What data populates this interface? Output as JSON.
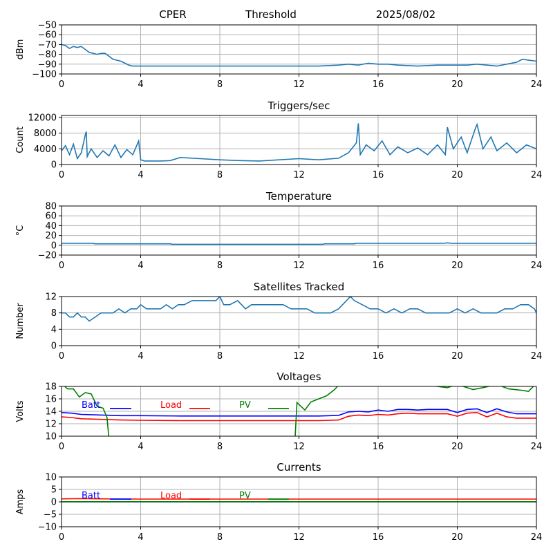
{
  "header": {
    "site": "CPER",
    "mode": "Threshold",
    "date": "2025/08/02"
  },
  "colors": {
    "series": "#1f77b4",
    "batt": "#0000ff",
    "load": "#ff0000",
    "pv": "#008000"
  },
  "chart_data": [
    {
      "type": "line",
      "title": "",
      "ylabel": "dBm",
      "xlim": [
        0,
        24
      ],
      "ylim": [
        -100,
        -50
      ],
      "xticks": [
        "0",
        "4",
        "8",
        "12",
        "16",
        "20",
        "24"
      ],
      "yticks": [
        "−50",
        "−60",
        "−70",
        "−80",
        "−90",
        "−100"
      ],
      "ytick_values": [
        -50,
        -60,
        -70,
        -80,
        -90,
        -100
      ],
      "grid": true,
      "series": [
        {
          "color": "#1f77b4",
          "x": [
            0,
            0.2,
            0.4,
            0.6,
            0.8,
            1.0,
            1.2,
            1.4,
            1.6,
            1.8,
            2.0,
            2.2,
            2.4,
            2.6,
            2.8,
            3.0,
            3.2,
            3.4,
            3.6,
            4.0,
            5,
            6,
            7,
            8,
            9,
            10,
            11,
            12,
            13,
            14,
            14.5,
            15,
            15.5,
            16,
            16.5,
            17,
            18,
            19,
            20,
            20.5,
            21,
            21.5,
            22,
            22.5,
            23,
            23.3,
            23.6,
            24
          ],
          "y": [
            -70,
            -71,
            -74,
            -72,
            -73,
            -72,
            -75,
            -78,
            -79,
            -80,
            -79,
            -79,
            -82,
            -85,
            -86,
            -87,
            -89,
            -91,
            -92,
            -92,
            -92,
            -92,
            -92,
            -92,
            -92,
            -92,
            -92,
            -92,
            -92,
            -91,
            -90,
            -91,
            -89,
            -90,
            -90,
            -91,
            -92,
            -91,
            -91,
            -91,
            -90,
            -91,
            -92,
            -90,
            -88,
            -85,
            -86,
            -87
          ]
        }
      ]
    },
    {
      "type": "line",
      "title": "Triggers/sec",
      "ylabel": "Count",
      "xlim": [
        0,
        24
      ],
      "ylim": [
        0,
        12500
      ],
      "xticks": [
        "0",
        "4",
        "8",
        "12",
        "16",
        "20",
        "24"
      ],
      "yticks": [
        "0",
        "4000",
        "8000",
        "12000"
      ],
      "ytick_values": [
        0,
        4000,
        8000,
        12000
      ],
      "grid": true,
      "series": [
        {
          "color": "#1f77b4",
          "x": [
            0,
            0.2,
            0.4,
            0.6,
            0.8,
            1.0,
            1.2,
            1.25,
            1.3,
            1.5,
            1.8,
            2.1,
            2.4,
            2.7,
            3.0,
            3.3,
            3.6,
            3.9,
            4.0,
            4.2,
            5,
            5.5,
            6,
            7,
            8,
            9,
            10,
            11,
            12,
            13,
            14,
            14.5,
            14.9,
            15.0,
            15.1,
            15.4,
            15.8,
            16.2,
            16.6,
            17,
            17.5,
            18,
            18.5,
            19,
            19.4,
            19.5,
            19.8,
            20.2,
            20.5,
            20.9,
            21.0,
            21.3,
            21.7,
            22,
            22.5,
            23,
            23.5,
            24
          ],
          "y": [
            3500,
            4800,
            2500,
            5200,
            1500,
            3000,
            7500,
            8400,
            2000,
            4000,
            1800,
            3500,
            2200,
            5000,
            1800,
            3800,
            2500,
            6000,
            1200,
            900,
            900,
            1000,
            1800,
            1500,
            1200,
            1000,
            900,
            1200,
            1500,
            1200,
            1600,
            3000,
            5500,
            10500,
            2500,
            5000,
            3500,
            6000,
            2500,
            4500,
            3000,
            4200,
            2500,
            5000,
            2500,
            9500,
            4000,
            7000,
            3000,
            9000,
            10200,
            4000,
            7000,
            3500,
            5500,
            3000,
            5000,
            4000
          ]
        }
      ]
    },
    {
      "type": "line",
      "title": "Temperature",
      "ylabel": "°C",
      "xlim": [
        0,
        24
      ],
      "ylim": [
        -20,
        80
      ],
      "xticks": [
        "0",
        "4",
        "8",
        "12",
        "16",
        "20",
        "24"
      ],
      "yticks": [
        "−20",
        "0",
        "20",
        "40",
        "60",
        "80"
      ],
      "ytick_values": [
        -20,
        0,
        20,
        40,
        60,
        80
      ],
      "grid": true,
      "series": [
        {
          "color": "#1f77b4",
          "x": [
            0,
            1.6,
            1.7,
            5.5,
            5.6,
            13.2,
            13.3,
            14.8,
            14.9,
            19.3,
            19.5,
            19.7,
            24
          ],
          "y": [
            4,
            4,
            3,
            3,
            2,
            2,
            3,
            3,
            4,
            4,
            5,
            4,
            4
          ]
        }
      ]
    },
    {
      "type": "line",
      "title": "Satellites Tracked",
      "ylabel": "Number",
      "xlim": [
        0,
        24
      ],
      "ylim": [
        0,
        12
      ],
      "xticks": [
        "0",
        "4",
        "8",
        "12",
        "16",
        "20",
        "24"
      ],
      "yticks": [
        "0",
        "4",
        "8",
        "12"
      ],
      "ytick_values": [
        0,
        4,
        8,
        12
      ],
      "grid": true,
      "series": [
        {
          "color": "#1f77b4",
          "x": [
            0,
            0.2,
            0.4,
            0.6,
            0.8,
            1.0,
            1.2,
            1.4,
            1.7,
            2.0,
            2.3,
            2.6,
            2.9,
            3.2,
            3.5,
            3.8,
            4.0,
            4.3,
            4.6,
            5.0,
            5.3,
            5.6,
            5.9,
            6.2,
            6.6,
            7.0,
            7.4,
            7.8,
            8.0,
            8.2,
            8.5,
            8.9,
            9.3,
            9.6,
            10.0,
            10.4,
            10.8,
            11.2,
            11.6,
            12.0,
            12.4,
            12.8,
            13.2,
            13.6,
            14.0,
            14.4,
            14.6,
            14.8,
            15.2,
            15.6,
            16.0,
            16.4,
            16.8,
            17.2,
            17.6,
            18.0,
            18.4,
            18.8,
            19.2,
            19.6,
            20.0,
            20.4,
            20.8,
            21.2,
            21.6,
            22.0,
            22.4,
            22.8,
            23.2,
            23.6,
            23.9,
            24
          ],
          "y": [
            8,
            8,
            7,
            7,
            8,
            7,
            7,
            6,
            7,
            8,
            8,
            8,
            9,
            8,
            9,
            9,
            10,
            9,
            9,
            9,
            10,
            9,
            10,
            10,
            11,
            11,
            11,
            11,
            12,
            10,
            10,
            11,
            9,
            10,
            10,
            10,
            10,
            10,
            9,
            9,
            9,
            8,
            8,
            8,
            9,
            11,
            12,
            11,
            10,
            9,
            9,
            8,
            9,
            8,
            9,
            9,
            8,
            8,
            8,
            8,
            9,
            8,
            9,
            8,
            8,
            8,
            9,
            9,
            10,
            10,
            9,
            8
          ]
        }
      ]
    },
    {
      "type": "line",
      "title": "Voltages",
      "ylabel": "Volts",
      "xlim": [
        0,
        24
      ],
      "ylim": [
        10,
        18
      ],
      "xticks": [
        "0",
        "4",
        "8",
        "12",
        "16",
        "20",
        "24"
      ],
      "yticks": [
        "10",
        "12",
        "14",
        "16",
        "18"
      ],
      "ytick_values": [
        10,
        12,
        14,
        16,
        18
      ],
      "grid": true,
      "legend": {
        "placement": "top-left",
        "entries": [
          "Batt",
          "Load",
          "PV"
        ]
      },
      "series": [
        {
          "name": "Batt",
          "color": "#0000ff",
          "x": [
            0,
            0.5,
            1,
            2,
            3,
            4,
            6,
            8,
            10,
            12,
            13,
            14,
            14.5,
            15,
            15.5,
            16,
            16.5,
            17,
            17.5,
            18,
            18.5,
            19,
            19.5,
            20,
            20.5,
            21,
            21.5,
            22,
            22.5,
            23,
            23.5,
            24
          ],
          "y": [
            13.8,
            13.7,
            13.5,
            13.4,
            13.3,
            13.3,
            13.25,
            13.25,
            13.25,
            13.25,
            13.25,
            13.35,
            13.9,
            14.0,
            13.9,
            14.2,
            14.0,
            14.3,
            14.3,
            14.2,
            14.3,
            14.3,
            14.3,
            13.8,
            14.3,
            14.4,
            13.8,
            14.4,
            13.9,
            13.6,
            13.6,
            13.6
          ]
        },
        {
          "name": "Load",
          "color": "#ff0000",
          "x": [
            0,
            0.5,
            1,
            2,
            3,
            4,
            6,
            8,
            10,
            12,
            13,
            14,
            14.5,
            15,
            15.5,
            16,
            16.5,
            17,
            17.5,
            18,
            18.5,
            19,
            19.5,
            20,
            20.5,
            21,
            21.5,
            22,
            22.5,
            23,
            23.5,
            24
          ],
          "y": [
            13.1,
            13.0,
            12.8,
            12.7,
            12.6,
            12.55,
            12.5,
            12.5,
            12.5,
            12.5,
            12.5,
            12.6,
            13.2,
            13.4,
            13.3,
            13.5,
            13.4,
            13.6,
            13.7,
            13.6,
            13.6,
            13.6,
            13.6,
            13.2,
            13.7,
            13.8,
            13.1,
            13.7,
            13.1,
            12.9,
            12.9,
            12.9
          ]
        },
        {
          "name": "PV",
          "color": "#008000",
          "x": [
            0,
            0.3,
            0.6,
            0.9,
            1.2,
            1.5,
            1.8,
            2.1,
            2.3,
            2.4,
            11.8,
            11.9,
            12.3,
            12.6,
            13.0,
            13.4,
            13.8,
            14.0,
            18.0,
            19.5,
            20.0,
            20.8,
            21.3,
            22.0,
            22.6,
            23.2,
            23.6,
            24
          ],
          "y": [
            18.5,
            17.6,
            17.6,
            16.3,
            17.0,
            16.8,
            14.8,
            14.5,
            13.0,
            9.5,
            9.5,
            15.4,
            14.2,
            15.5,
            16.0,
            16.5,
            17.5,
            18.2,
            18.4,
            17.8,
            18.3,
            17.5,
            17.8,
            18.3,
            17.6,
            17.4,
            17.2,
            18.5
          ]
        }
      ]
    },
    {
      "type": "line",
      "title": "Currents",
      "ylabel": "Amps",
      "xlim": [
        0,
        24
      ],
      "ylim": [
        -10,
        10
      ],
      "xticks": [
        "0",
        "4",
        "8",
        "12",
        "16",
        "20",
        "24"
      ],
      "yticks": [
        "−10",
        "−5",
        "0",
        "5",
        "10"
      ],
      "ytick_values": [
        -10,
        -5,
        0,
        5,
        10
      ],
      "grid": true,
      "legend": {
        "placement": "top-left",
        "entries": [
          "Batt",
          "Load",
          "PV"
        ]
      },
      "series": [
        {
          "name": "Batt",
          "color": "#0000ff",
          "x": [
            0,
            24
          ],
          "y": [
            0,
            0
          ]
        },
        {
          "name": "Load",
          "color": "#ff0000",
          "x": [
            0,
            1,
            2,
            4,
            8,
            12,
            16,
            20,
            24
          ],
          "y": [
            1.2,
            1.3,
            1.2,
            1.1,
            1.1,
            1.1,
            1.1,
            1.1,
            1.1
          ]
        },
        {
          "name": "PV",
          "color": "#008000",
          "x": [
            0,
            24
          ],
          "y": [
            0.05,
            0.05
          ]
        }
      ]
    }
  ]
}
